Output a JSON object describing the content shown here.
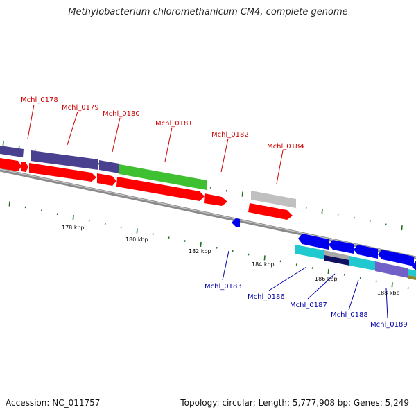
{
  "title": "Methylobacterium chloromethanicum CM4, complete genome",
  "footer": {
    "accession": "Accession: NC_011757",
    "topology": "Topology: circular; Length: 5,777,908 bp; Genes: 5,249"
  },
  "kbp_labels": [
    "178 kbp",
    "180 kbp",
    "182 kbp",
    "184 kbp",
    "186 kbp",
    "188 kbp"
  ],
  "top_genes": [
    {
      "name": "Mchl_0178"
    },
    {
      "name": "Mchl_0179"
    },
    {
      "name": "Mchl_0180"
    },
    {
      "name": "Mchl_0181"
    },
    {
      "name": "Mchl_0182"
    },
    {
      "name": "Mchl_0184"
    }
  ],
  "bottom_genes": [
    {
      "name": "Mchl_0183"
    },
    {
      "name": "Mchl_0186"
    },
    {
      "name": "Mchl_0187"
    },
    {
      "name": "Mchl_0188"
    },
    {
      "name": "Mchl_0189"
    }
  ],
  "colors": {
    "cds_forward": "#ff0000",
    "cds_reverse": "#0000ee",
    "cog_purple": "#4a4090",
    "cog_green": "#3ec030",
    "cog_gray": "#c0c0c0",
    "cog_cyan": "#20c8d0",
    "cog_navy": "#101060",
    "cog_lilac": "#7060c8",
    "backbone": "#888888",
    "tick": "#207020"
  }
}
